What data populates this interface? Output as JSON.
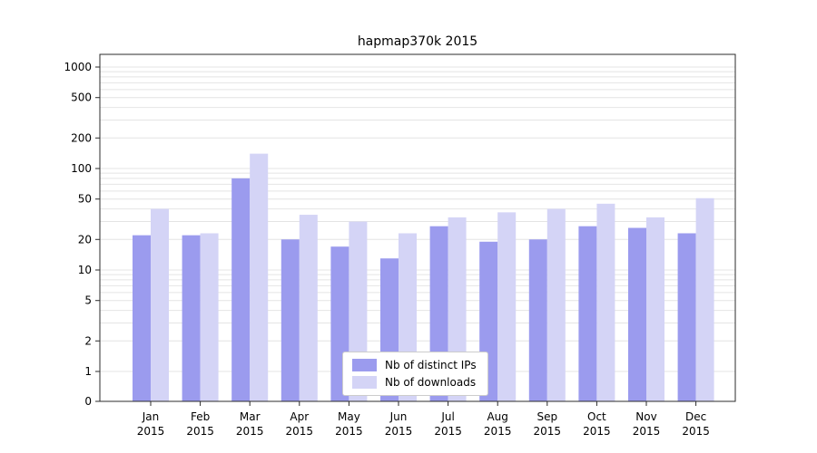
{
  "chart_data": {
    "type": "bar",
    "title": "hapmap370k 2015",
    "x_labels": [
      "Jan 2015",
      "Feb 2015",
      "Mar 2015",
      "Apr 2015",
      "May 2015",
      "Jun 2015",
      "Jul 2015",
      "Aug 2015",
      "Sep 2015",
      "Oct 2015",
      "Nov 2015",
      "Dec 2015"
    ],
    "series": [
      {
        "name": "Nb of distinct IPs",
        "color": "#9b9bee",
        "values": [
          22,
          22,
          80,
          20,
          17,
          13,
          27,
          19,
          20,
          27,
          26,
          23
        ]
      },
      {
        "name": "Nb of downloads",
        "color": "#d4d4f6",
        "values": [
          40,
          23,
          140,
          35,
          30,
          23,
          33,
          37,
          40,
          45,
          33,
          51
        ]
      }
    ],
    "yticks": [
      0,
      1,
      2,
      5,
      10,
      20,
      50,
      100,
      200,
      500,
      1000
    ],
    "yscale": "symlog",
    "ylim": [
      0,
      1400
    ],
    "grid": "horizontal-log-minor",
    "legend_position": "lower-center",
    "xlabel": "",
    "ylabel": ""
  },
  "colors": {
    "background": "#ffffff",
    "grid": "#e4e4e4",
    "frame": "#2b2b2b",
    "text": "#000000",
    "legend_border": "#cccccc",
    "bar_dark": "#9b9bee",
    "bar_light": "#d4d4f6"
  }
}
